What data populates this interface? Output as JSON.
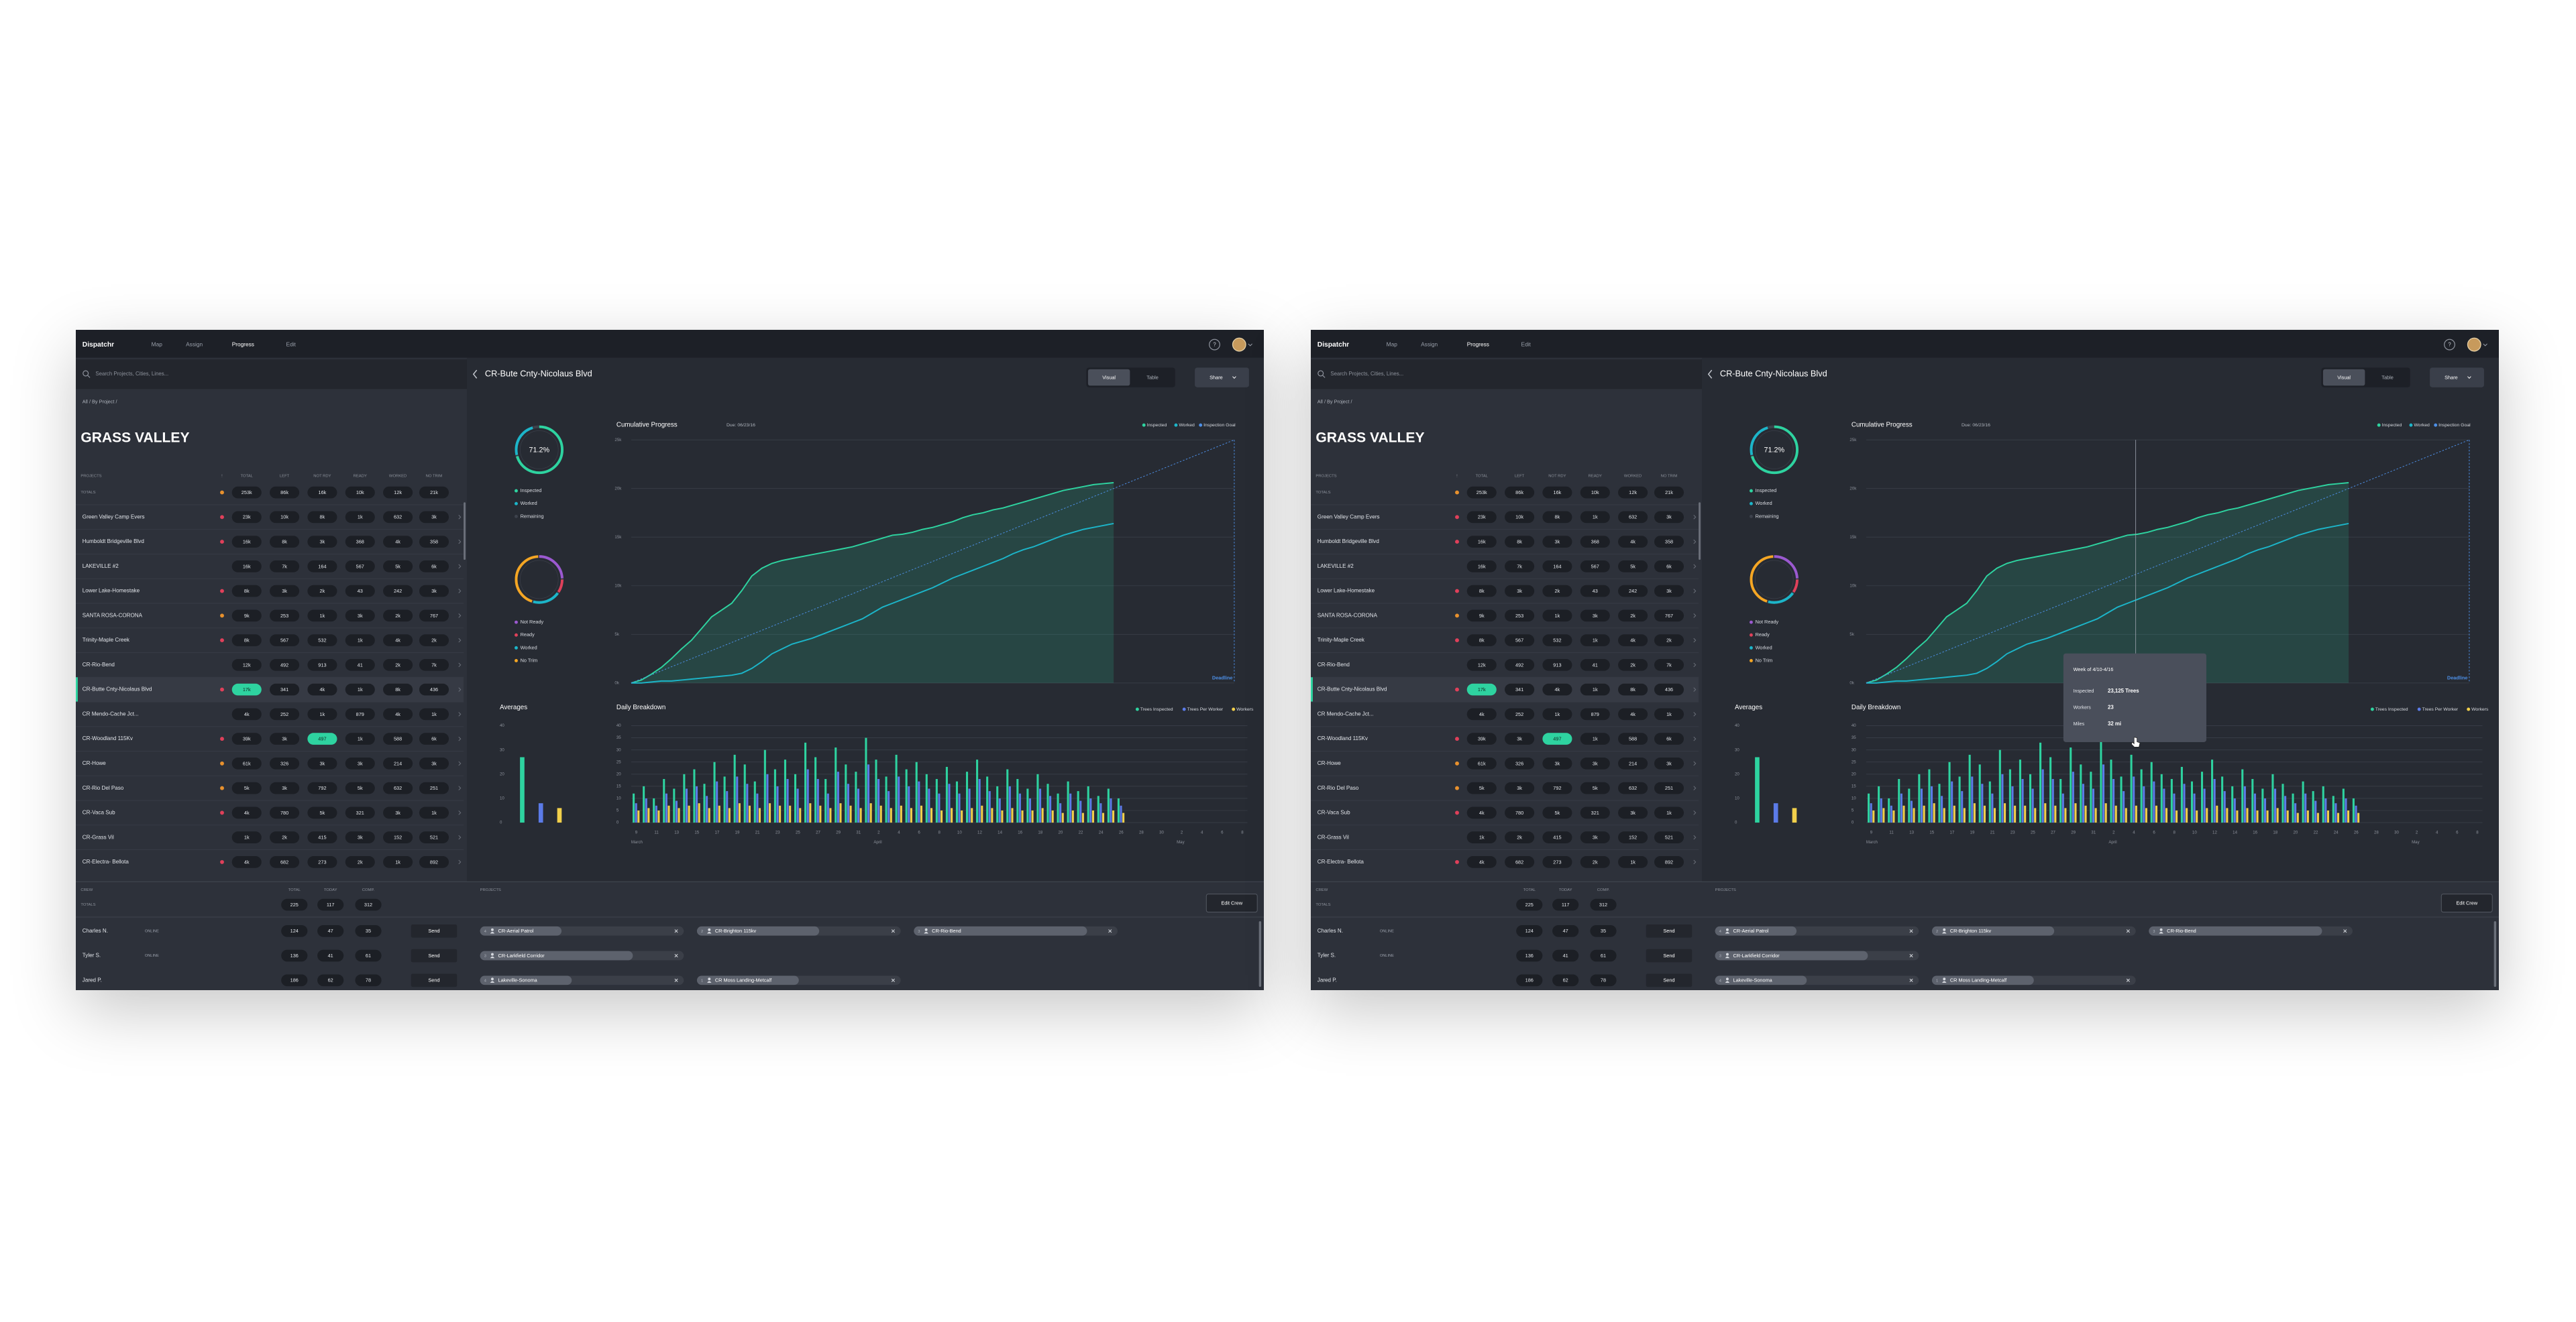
{
  "nav": {
    "brand": "Dispatchr",
    "links": [
      "Map",
      "Assign",
      "Progress",
      "Edit"
    ],
    "active": "Progress",
    "help": "?"
  },
  "sidebar": {
    "search_placeholder": "Search Projects, Cities, Lines...",
    "breadcrumb": "All  /  By Project  /",
    "region": "GRASS VALLEY",
    "columns": [
      "PROJECTS",
      "!",
      "TOTAL",
      "LEFT",
      "NOT RDY",
      "READY",
      "WORKED",
      "NO TRIM"
    ],
    "totals": {
      "name": "TOTALS",
      "status": "#e8912d",
      "cells": [
        "253k",
        "86k",
        "16k",
        "10k",
        "12k",
        "21k"
      ]
    },
    "rows": [
      {
        "name": "Green Valley Camp Evers",
        "status": "#e0405a",
        "cells": [
          "23k",
          "10k",
          "8k",
          "1k",
          "632",
          "3k"
        ]
      },
      {
        "name": "Humboldt Bridgeville Blvd",
        "status": "#e0405a",
        "cells": [
          "16k",
          "8k",
          "3k",
          "368",
          "4k",
          "358"
        ]
      },
      {
        "name": "LAKEVILLE #2",
        "status": null,
        "cells": [
          "16k",
          "7k",
          "164",
          "567",
          "5k",
          "6k"
        ]
      },
      {
        "name": "Lower Lake-Homestake",
        "status": "#e0405a",
        "cells": [
          "8k",
          "3k",
          "2k",
          "43",
          "242",
          "3k"
        ]
      },
      {
        "name": "SANTA ROSA-CORONA",
        "status": "#e8912d",
        "cells": [
          "9k",
          "253",
          "1k",
          "3k",
          "2k",
          "767"
        ]
      },
      {
        "name": "Trinity-Maple Creek",
        "status": "#e0405a",
        "cells": [
          "8k",
          "567",
          "532",
          "1k",
          "4k",
          "2k"
        ]
      },
      {
        "name": "CR-Rio-Bend",
        "status": null,
        "cells": [
          "12k",
          "492",
          "913",
          "41",
          "2k",
          "7k"
        ]
      },
      {
        "name": "CR-Butte Cnty-Nicolaus Blvd",
        "status": "#e0405a",
        "cells": [
          "17k",
          "341",
          "4k",
          "1k",
          "8k",
          "436"
        ],
        "selected": true,
        "highlight_cell": 0
      },
      {
        "name": "CR Mendo-Cache Jct...",
        "status": null,
        "cells": [
          "4k",
          "252",
          "1k",
          "879",
          "4k",
          "1k"
        ]
      },
      {
        "name": "CR-Woodland 115Kv",
        "status": "#e0405a",
        "cells": [
          "39k",
          "3k",
          "497",
          "1k",
          "588",
          "6k"
        ],
        "highlight_cell": 2
      },
      {
        "name": "CR-Howe",
        "status": "#e8912d",
        "cells": [
          "61k",
          "326",
          "3k",
          "3k",
          "214",
          "3k"
        ]
      },
      {
        "name": "CR-Rio Del Paso",
        "status": "#e8912d",
        "cells": [
          "5k",
          "3k",
          "792",
          "5k",
          "632",
          "251"
        ]
      },
      {
        "name": "CR-Vaca Sub",
        "status": "#e0405a",
        "cells": [
          "4k",
          "780",
          "5k",
          "321",
          "3k",
          "1k"
        ]
      },
      {
        "name": "CR-Grass Vil",
        "status": null,
        "cells": [
          "1k",
          "2k",
          "415",
          "3k",
          "152",
          "521"
        ]
      },
      {
        "name": "CR-Electra- Bellota",
        "status": "#e0405a",
        "cells": [
          "4k",
          "682",
          "273",
          "2k",
          "1k",
          "892"
        ]
      }
    ]
  },
  "project": {
    "title": "CR-Bute Cnty-Nicolaus Blvd",
    "views": [
      "Visual",
      "Table"
    ],
    "active_view": "Visual",
    "share": "Share"
  },
  "crew": {
    "columns": [
      "CREW",
      "TOTAL",
      "TODAY",
      "COMP."
    ],
    "projects_header": "PROJECTS",
    "edit_button": "Edit Crew",
    "totals": {
      "name": "TOTALS",
      "cells": [
        "225",
        "117",
        "312"
      ]
    },
    "members": [
      {
        "name": "Charles N.",
        "status": "ONLINE",
        "cells": [
          "124",
          "47",
          "35"
        ],
        "action": "Send",
        "projects": [
          {
            "count": "4",
            "name": "CR-Aerial Patrol",
            "progress": 40
          },
          {
            "count": "2",
            "name": "CR-Brighton 115kv",
            "progress": 60
          },
          {
            "count": "3",
            "name": "CR-Rio-Bend",
            "progress": 85
          }
        ]
      },
      {
        "name": "Tyler S.",
        "status": "ONLINE",
        "cells": [
          "136",
          "41",
          "61"
        ],
        "action": "Send",
        "projects": [
          {
            "count": "3",
            "name": "CR-Larkfield Corridor",
            "progress": 75
          }
        ]
      },
      {
        "name": "Jared P.",
        "status": null,
        "cells": [
          "186",
          "62",
          "78"
        ],
        "action": "Send",
        "projects": [
          {
            "count": "4",
            "name": "Lakeville-Sonoma",
            "progress": 45
          },
          {
            "count": "1",
            "name": "CR Moss Landing-Metcalf",
            "progress": 50
          }
        ]
      }
    ]
  },
  "tooltip": {
    "title": "Week of 4/10-4/16",
    "rows": [
      {
        "label": "Inspected",
        "value": "23,125 Trees"
      },
      {
        "label": "Workers",
        "value": "23"
      },
      {
        "label": "Miles",
        "value": "32 mi"
      }
    ]
  },
  "chart_data": [
    {
      "type": "line",
      "title": "Cumulative Progress",
      "subtitle": "Due: 06/23/16",
      "annotation": "Deadline",
      "xlim": [
        0,
        60
      ],
      "ylim": [
        0,
        25000
      ],
      "yticks": [
        {
          "value": 0,
          "label": "0k"
        },
        {
          "value": 5000,
          "label": "5k"
        },
        {
          "value": 10000,
          "label": "10k"
        },
        {
          "value": 15000,
          "label": "15k"
        },
        {
          "value": 20000,
          "label": "20k"
        },
        {
          "value": 25000,
          "label": "25k"
        }
      ],
      "grid": true,
      "legend": "top-right",
      "series": [
        {
          "name": "Inspected",
          "color": "#2ed3a0",
          "fill": true,
          "values": [
            0,
            300,
            900,
            1600,
            2500,
            3500,
            4400,
            5600,
            6800,
            7500,
            8200,
            9500,
            11000,
            11800,
            12300,
            12600,
            12800,
            13000,
            13200,
            13400,
            13600,
            13800,
            14000,
            14300,
            14600,
            14900,
            15200,
            15300,
            15500,
            15800,
            16000,
            16300,
            16600,
            17000,
            17300,
            17500,
            17800,
            18000,
            18300,
            18600,
            18900,
            19200,
            19500,
            19800,
            20000,
            20200,
            20400,
            20500,
            20600
          ]
        },
        {
          "name": "Worked",
          "color": "#1cb5c9",
          "values": [
            0,
            0,
            100,
            200,
            200,
            300,
            400,
            500,
            600,
            700,
            800,
            1000,
            1500,
            2200,
            3000,
            3500,
            4000,
            4300,
            4600,
            5000,
            5400,
            5800,
            6200,
            6600,
            7200,
            7800,
            8200,
            8600,
            9000,
            9400,
            9800,
            10300,
            10800,
            11200,
            11600,
            12000,
            12400,
            12800,
            13300,
            13700,
            14000,
            14400,
            14800,
            15200,
            15500,
            15800,
            16000,
            16200,
            16400
          ]
        },
        {
          "name": "Inspection Goal",
          "color": "#4d8fe6",
          "dashed": true,
          "x": [
            0,
            60
          ],
          "values": [
            0,
            25000
          ]
        }
      ]
    },
    {
      "type": "bar",
      "title": "Daily Breakdown",
      "ylim": [
        0,
        40
      ],
      "yticks": [
        0,
        5,
        10,
        15,
        20,
        25,
        30,
        35,
        40
      ],
      "grid": true,
      "legend": "top-right",
      "categories": [
        "9",
        null,
        "11",
        null,
        "13",
        null,
        "15",
        null,
        "17",
        null,
        "19",
        null,
        "21",
        null,
        "23",
        null,
        "25",
        null,
        "27",
        null,
        "29",
        null,
        "31",
        null,
        "2",
        null,
        "4",
        null,
        "6",
        null,
        "8",
        null,
        "10",
        null,
        "12",
        null,
        "14",
        null,
        "16",
        null,
        "18",
        null,
        "20",
        null,
        "22",
        null,
        "24",
        null,
        "26",
        null,
        "28",
        null,
        "30",
        null,
        "2",
        null,
        "4",
        null,
        "6",
        null,
        "8"
      ],
      "x_group_labels": [
        "March",
        "April",
        "May"
      ],
      "series": [
        {
          "name": "Trees Inspected",
          "color": "#2ed3a0",
          "values": [
            12,
            15,
            10,
            18,
            14,
            20,
            22,
            16,
            25,
            19,
            28,
            24,
            17,
            30,
            22,
            26,
            20,
            33,
            27,
            18,
            31,
            24,
            21,
            35,
            26,
            19,
            28,
            22,
            25,
            20,
            18,
            23,
            17,
            21,
            26,
            19,
            15,
            22,
            18,
            14,
            20,
            16,
            12,
            17,
            13,
            15,
            11,
            14,
            10,
            null,
            null,
            null,
            null,
            null,
            null,
            null,
            null,
            null,
            null,
            null,
            null
          ]
        },
        {
          "name": "Trees Per Worker",
          "color": "#5b7be8",
          "values": [
            8,
            10,
            7,
            12,
            9,
            14,
            15,
            11,
            17,
            13,
            19,
            16,
            12,
            20,
            15,
            18,
            14,
            22,
            18,
            12,
            21,
            16,
            14,
            24,
            18,
            13,
            19,
            15,
            17,
            14,
            12,
            16,
            12,
            14,
            18,
            13,
            10,
            15,
            12,
            10,
            14,
            11,
            8,
            12,
            9,
            10,
            8,
            10,
            7,
            null,
            null,
            null,
            null,
            null,
            null,
            null,
            null,
            null,
            null,
            null,
            null
          ]
        },
        {
          "name": "Workers",
          "color": "#f2d04b",
          "values": [
            5,
            6,
            5,
            7,
            6,
            7,
            8,
            6,
            7,
            6,
            8,
            7,
            6,
            8,
            7,
            7,
            6,
            8,
            7,
            6,
            8,
            7,
            6,
            8,
            7,
            6,
            7,
            6,
            7,
            6,
            5,
            6,
            5,
            6,
            7,
            6,
            5,
            6,
            5,
            5,
            6,
            5,
            4,
            5,
            4,
            5,
            4,
            5,
            4,
            null,
            null,
            null,
            null,
            null,
            null,
            null,
            null,
            null,
            null,
            null,
            null
          ]
        }
      ]
    },
    {
      "type": "bar",
      "title": "Averages",
      "ylim": [
        0,
        40
      ],
      "yticks": [
        0,
        10,
        20,
        30,
        40
      ],
      "values": [
        27,
        8,
        6
      ],
      "colors": [
        "#2ed3a0",
        "#5b7be8",
        "#f2d04b"
      ]
    },
    {
      "type": "donut",
      "center_label": "71.2%",
      "labels": [
        "Inspected",
        "Worked",
        "Remaining"
      ],
      "values": [
        71.2,
        25,
        3.8
      ],
      "colors": [
        "#2ed3a0",
        "#1cb5c9",
        "#3d424c"
      ]
    },
    {
      "type": "donut",
      "labels": [
        "Not Ready",
        "Ready",
        "Worked",
        "No Trim"
      ],
      "values": [
        25,
        10,
        20,
        45
      ],
      "colors": [
        "#9b59d0",
        "#e0405a",
        "#1cb5c9",
        "#f5a623"
      ]
    }
  ]
}
